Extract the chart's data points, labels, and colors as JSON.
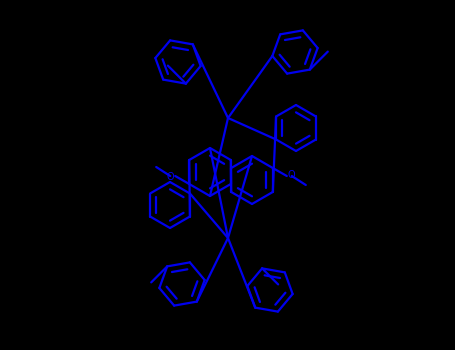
{
  "background_color": "#000000",
  "line_color": "#0000EE",
  "line_width": 1.6,
  "figsize": [
    4.55,
    3.5
  ],
  "dpi": 100,
  "xlim": [
    0,
    455
  ],
  "ylim": [
    0,
    350
  ]
}
